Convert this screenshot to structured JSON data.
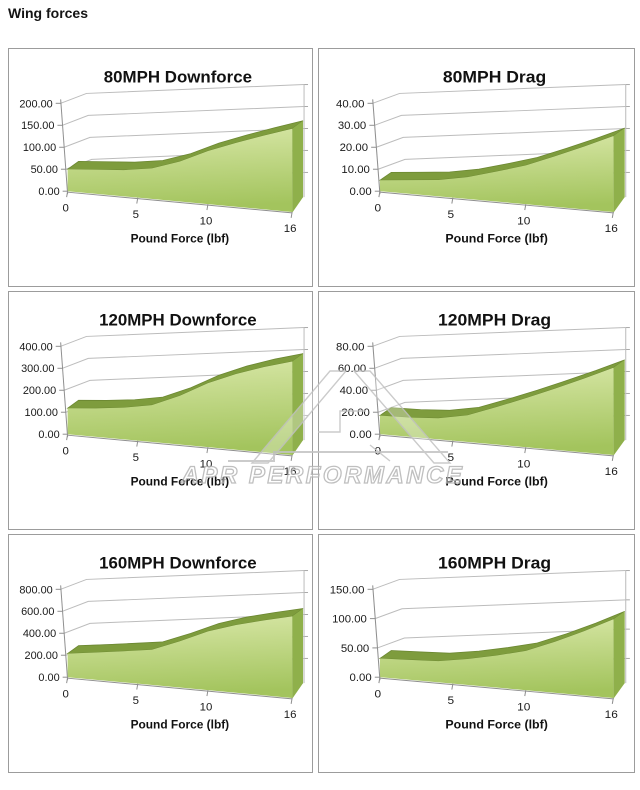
{
  "page": {
    "title": "Wing forces"
  },
  "watermark": {
    "text": "APR PERFORMANCE",
    "logo": "apr-a-emblem"
  },
  "style": {
    "area_top": "#d8e7a7",
    "area_bottom": "#a3c45d",
    "area_ridge": "#7e9c3d",
    "area_side": "#8fb04b",
    "gridline": "#bcbcbc",
    "axis": "#8f8f8f",
    "label": "#1a1a1a"
  },
  "chart_data": [
    {
      "type": "area",
      "title": "80MPH Downforce",
      "xlabel": "Pound Force (lbf)",
      "ylabel": "",
      "xlim": [
        0,
        16
      ],
      "ylim": [
        0,
        200
      ],
      "ytick_step": 50,
      "xticks": [
        0,
        5,
        10,
        16
      ],
      "ytick_labels": [
        "0.00",
        "50.00",
        "100.00",
        "150.00",
        "200.00"
      ],
      "grid": true,
      "legend": false,
      "x": [
        0,
        2,
        4,
        6,
        8,
        10,
        12,
        14,
        16
      ],
      "values": [
        50,
        53,
        56,
        63,
        80,
        103,
        120,
        135,
        148
      ]
    },
    {
      "type": "area",
      "title": "80MPH Drag",
      "xlabel": "Pound Force (lbf)",
      "ylabel": "",
      "xlim": [
        0,
        16
      ],
      "ylim": [
        0,
        40
      ],
      "ytick_step": 10,
      "xticks": [
        0,
        5,
        10,
        16
      ],
      "ytick_labels": [
        "0.00",
        "10.00",
        "20.00",
        "30.00",
        "40.00"
      ],
      "grid": true,
      "legend": false,
      "x": [
        0,
        2,
        4,
        6,
        8,
        10,
        12,
        14,
        16
      ],
      "values": [
        5,
        6,
        7,
        9,
        12,
        15,
        19,
        23,
        27
      ]
    },
    {
      "type": "area",
      "title": "120MPH Downforce",
      "xlabel": "Pound Force (lbf)",
      "ylabel": "",
      "xlim": [
        0,
        16
      ],
      "ylim": [
        0,
        400
      ],
      "ytick_step": 100,
      "xticks": [
        0,
        5,
        10,
        16
      ],
      "ytick_labels": [
        "0.00",
        "100.00",
        "200.00",
        "300.00",
        "400.00"
      ],
      "grid": true,
      "legend": false,
      "x": [
        0,
        2,
        4,
        6,
        8,
        10,
        12,
        14,
        16
      ],
      "values": [
        118,
        125,
        135,
        152,
        195,
        248,
        285,
        312,
        332
      ]
    },
    {
      "type": "area",
      "title": "120MPH Drag",
      "xlabel": "Pound Force (lbf)",
      "ylabel": "",
      "xlim": [
        0,
        16
      ],
      "ylim": [
        0,
        80
      ],
      "ytick_step": 20,
      "xticks": [
        0,
        5,
        10,
        16
      ],
      "ytick_labels": [
        "0.00",
        "20.00",
        "40.00",
        "60.00",
        "80.00"
      ],
      "grid": true,
      "legend": false,
      "x": [
        0,
        2,
        4,
        6,
        8,
        10,
        12,
        14,
        16
      ],
      "values": [
        17,
        17,
        18,
        22,
        30,
        38,
        46,
        54,
        62
      ]
    },
    {
      "type": "area",
      "title": "160MPH Downforce",
      "xlabel": "Pound Force (lbf)",
      "ylabel": "",
      "xlim": [
        0,
        16
      ],
      "ylim": [
        0,
        800
      ],
      "ytick_step": 200,
      "xticks": [
        0,
        5,
        10,
        16
      ],
      "ytick_labels": [
        "0.00",
        "200.00",
        "400.00",
        "600.00",
        "800.00"
      ],
      "grid": true,
      "legend": false,
      "x": [
        0,
        2,
        4,
        6,
        8,
        10,
        12,
        14,
        16
      ],
      "values": [
        215,
        240,
        265,
        290,
        370,
        455,
        510,
        548,
        580
      ]
    },
    {
      "type": "area",
      "title": "160MPH Drag",
      "xlabel": "Pound Force (lbf)",
      "ylabel": "",
      "xlim": [
        0,
        16
      ],
      "ylim": [
        0,
        150
      ],
      "ytick_step": 50,
      "xticks": [
        0,
        5,
        10,
        16
      ],
      "ytick_labels": [
        "0.00",
        "50.00",
        "100.00",
        "150.00"
      ],
      "grid": true,
      "legend": false,
      "x": [
        0,
        2,
        4,
        6,
        8,
        10,
        12,
        14,
        16
      ],
      "values": [
        32,
        33,
        34,
        40,
        48,
        57,
        72,
        88,
        105
      ]
    }
  ]
}
